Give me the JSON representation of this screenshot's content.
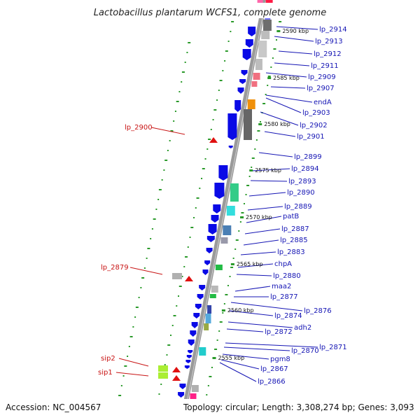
{
  "title": "Lactobacillus plantarum WCFS1, complete genome",
  "footer": {
    "accession": "Accession: NC_004567",
    "topology": "Topology: circular; Length: 3,308,274 bp; Genes: 3,093"
  },
  "colors": {
    "backbone": "#808080",
    "forward_gene": "#0a0ae6",
    "marker": "#2a9a2a",
    "right_label": "#1414b4",
    "left_label": "#c81414"
  },
  "kbp_markers": [
    "2590 kbp",
    "2585 kbp",
    "2580 kbp",
    "2575 kbp",
    "2570 kbp",
    "2565 kbp",
    "2560 kbp",
    "2555 kbp"
  ],
  "right_labels": [
    "lp_2914",
    "lp_2913",
    "lp_2912",
    "lp_2911",
    "lp_2909",
    "lp_2907",
    "endA",
    "lp_2903",
    "lp_2902",
    "lp_2901",
    "lp_2899",
    "lp_2894",
    "lp_2893",
    "lp_2890",
    "lp_2889",
    "patB",
    "lp_2887",
    "lp_2885",
    "lp_2883",
    "chpA",
    "lp_2880",
    "maa2",
    "lp_2877",
    "lp_2876",
    "lp_2874",
    "adh2",
    "lp_2872",
    "lp_2871",
    "lp_2870",
    "pgm8",
    "lp_2867",
    "lp_2866"
  ],
  "left_labels": [
    "lp_2900",
    "lp_2879",
    "sip2",
    "sip1"
  ]
}
